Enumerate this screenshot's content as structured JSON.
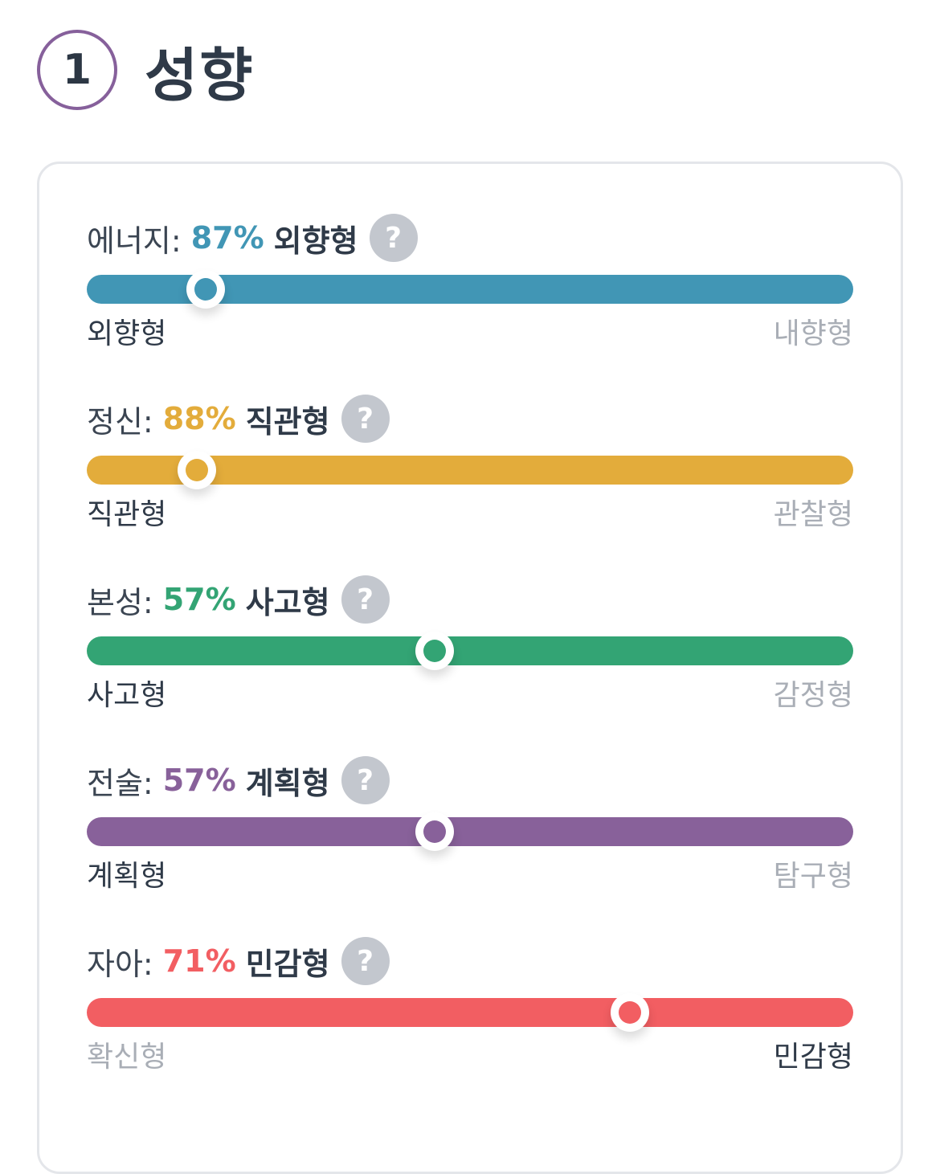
{
  "header": {
    "step_number": "1",
    "title": "성향"
  },
  "colors": {
    "step_ring": "#86609b",
    "help_icon_bg": "#c3c7ce"
  },
  "traits": [
    {
      "label": "에너지:",
      "percent_text": "87%",
      "result": "외향형",
      "left_pole": "외향형",
      "right_pole": "내향형",
      "active_pole": "left",
      "position": 0.155,
      "color": "#4196b5"
    },
    {
      "label": "정신:",
      "percent_text": "88%",
      "result": "직관형",
      "left_pole": "직관형",
      "right_pole": "관찰형",
      "active_pole": "left",
      "position": 0.144,
      "color": "#e3ac3b"
    },
    {
      "label": "본성:",
      "percent_text": "57%",
      "result": "사고형",
      "left_pole": "사고형",
      "right_pole": "감정형",
      "active_pole": "left",
      "position": 0.454,
      "color": "#33a474"
    },
    {
      "label": "전술:",
      "percent_text": "57%",
      "result": "계획형",
      "left_pole": "계획형",
      "right_pole": "탐구형",
      "active_pole": "left",
      "position": 0.454,
      "color": "#88619a"
    },
    {
      "label": "자아:",
      "percent_text": "71%",
      "result": "민감형",
      "left_pole": "확신형",
      "right_pole": "민감형",
      "active_pole": "right",
      "position": 0.709,
      "color": "#f25e62"
    }
  ]
}
